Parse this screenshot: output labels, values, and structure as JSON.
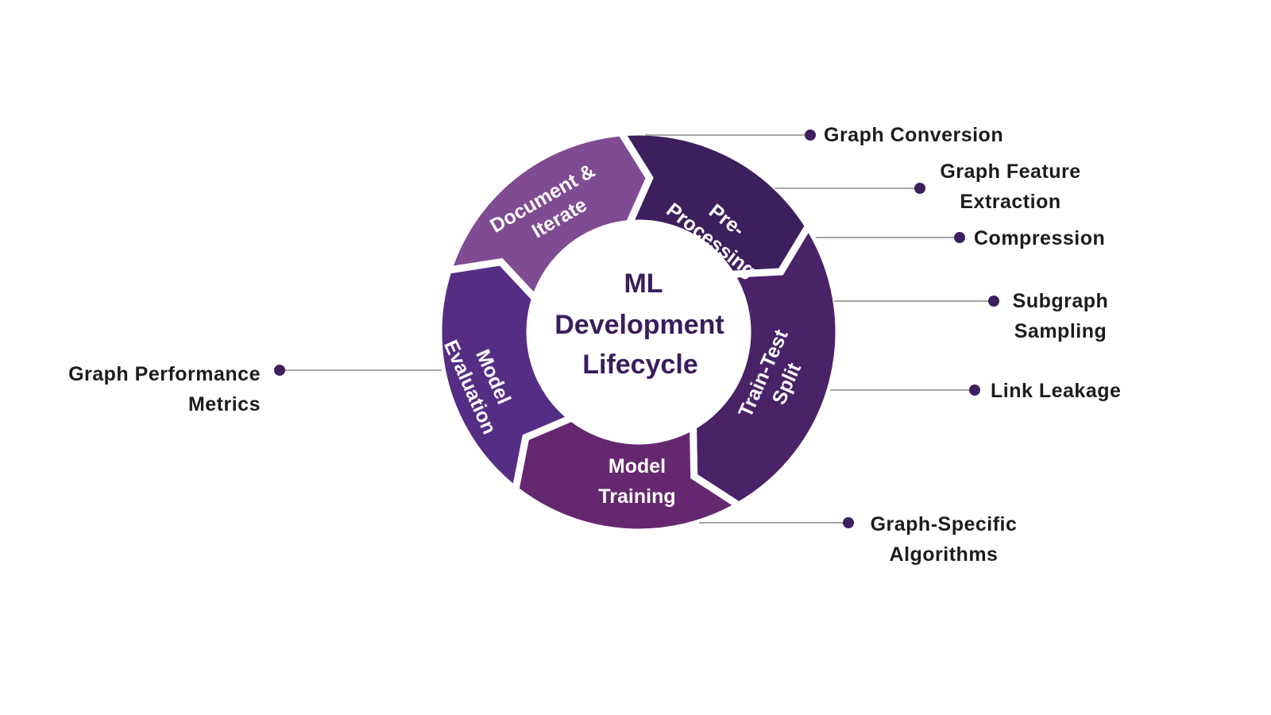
{
  "center": {
    "line1": "ML",
    "line2": "Development",
    "line3": "Lifecycle"
  },
  "colors": {
    "pre_processing": "#3d1f5e",
    "train_test_split": "#4a2268",
    "model_training": "#652870",
    "model_evaluation": "#552d85",
    "document_iterate": "#7f4b92",
    "dot": "#3d1f5e",
    "title": "#3a1d5c"
  },
  "segments": [
    {
      "id": "pre_processing",
      "lines": [
        "Pre-",
        "Processing"
      ]
    },
    {
      "id": "train_test_split",
      "lines": [
        "Train-Test",
        "Split"
      ]
    },
    {
      "id": "model_training",
      "lines": [
        "Model",
        "Training"
      ]
    },
    {
      "id": "model_evaluation",
      "lines": [
        "Model",
        "Evaluation"
      ]
    },
    {
      "id": "document_iterate",
      "lines": [
        "Document &",
        "Iterate"
      ]
    }
  ],
  "callouts": [
    {
      "lines": [
        "Graph Conversion"
      ]
    },
    {
      "lines": [
        "Graph Feature",
        "Extraction"
      ]
    },
    {
      "lines": [
        "Compression"
      ]
    },
    {
      "lines": [
        "Subgraph",
        "Sampling"
      ]
    },
    {
      "lines": [
        "Link Leakage"
      ]
    },
    {
      "lines": [
        "Graph-Specific",
        "Algorithms"
      ]
    },
    {
      "lines": [
        "Graph Performance",
        "Metrics"
      ]
    }
  ]
}
